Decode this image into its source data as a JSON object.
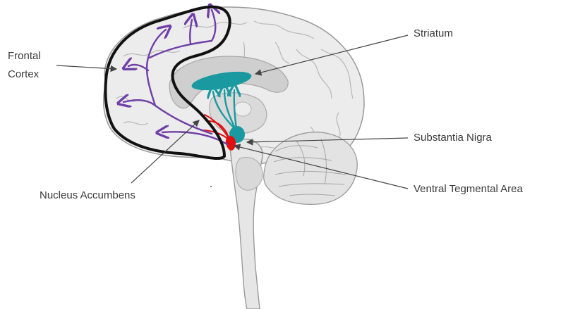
{
  "labels": {
    "frontal_cortex_line1": "Frontal",
    "frontal_cortex_line2": "Cortex",
    "striatum": "Striatum",
    "substantia_nigra": "Substantia Nigra",
    "nucleus_accumbens": "Nucleus Accumbens",
    "ventral_tegmental_area": "Ventral Tegmental Area"
  },
  "colors": {
    "mesocortical_pathway": "#6f3fa8",
    "nigrostriatal_pathway": "#1a9aa0",
    "ventral_tegmental_area": "#e10f0f",
    "outline_region": "#111111",
    "brain_fill": "#e9e9e9",
    "brain_stroke": "#9a9a9a"
  }
}
